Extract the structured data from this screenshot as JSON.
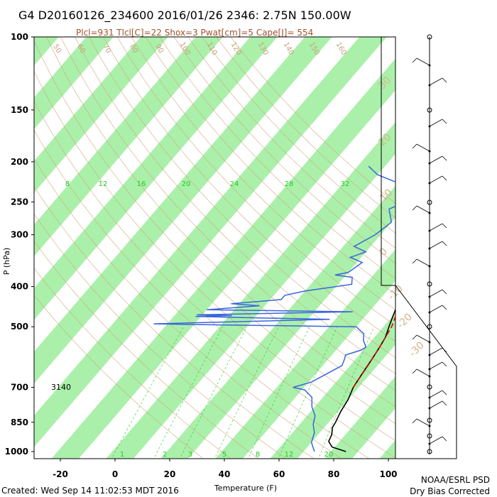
{
  "header": {
    "title": "G4 D20160126_234600 2016/01/26 2346:  2.75N 150.00W",
    "indices": "Plcl=931 Tlcl[C]=22 Shox=3 Pwat[cm]=5 Cape[J]= 554"
  },
  "footer": {
    "created": "Created: Wed Sep 14 11:02:53 MDT 2016",
    "org": "NOAA/ESRL PSD",
    "note": "Dry Bias Corrected"
  },
  "annotation": {
    "height_label": "3140"
  },
  "colors": {
    "temperature": "#000000",
    "dewpoint": "#3a66dd",
    "parcel": "#dd0000",
    "isotherm_band": "#aaf0aa",
    "dry_adiabat": "#d2a77f",
    "mixing_ratio": "#22cc22"
  },
  "chart_data": {
    "type": "line",
    "title": "",
    "xlabel": "Temperature (F)",
    "ylabel": "P (hPa)",
    "x_ticks": [
      "-20",
      "0",
      "20",
      "40",
      "60",
      "80",
      "100"
    ],
    "y_ticks": [
      "100",
      "150",
      "200",
      "250",
      "300",
      "400",
      "500",
      "700",
      "850",
      "1000"
    ],
    "xlim": [
      -30,
      107
    ],
    "ylim_log": [
      1040,
      100
    ],
    "y_scale": "log",
    "mixing_ratio_labels_top": [
      "8",
      "12",
      "16",
      "20",
      "24",
      "28",
      "32"
    ],
    "mixing_ratio_labels_bottom": [
      "1",
      "2",
      "3",
      "5",
      "8",
      "12",
      "20"
    ],
    "dry_adiabat_labels": [
      "50",
      "60",
      "70",
      "80",
      "90",
      "100",
      "110",
      "120",
      "130",
      "140",
      "150",
      "160"
    ],
    "skewed_isotherm_labels": [
      "30",
      "20",
      "10",
      "0",
      "-10",
      "-20",
      "-30"
    ],
    "series": [
      {
        "name": "Temperature",
        "points": [
          [
            85.5,
            1000
          ],
          [
            79,
            975
          ],
          [
            76,
            945
          ],
          [
            75,
            910
          ],
          [
            73,
            875
          ],
          [
            72.5,
            850
          ],
          [
            71,
            800
          ],
          [
            70,
            750
          ],
          [
            68,
            700
          ],
          [
            67,
            650
          ],
          [
            66,
            600
          ],
          [
            65,
            560
          ],
          [
            64,
            530
          ],
          [
            62,
            500
          ],
          [
            60,
            470
          ],
          [
            58,
            440
          ],
          [
            55.5,
            410
          ],
          [
            52,
            380
          ],
          [
            48,
            355
          ],
          [
            46,
            330
          ],
          [
            44,
            300
          ],
          [
            39,
            275
          ],
          [
            35,
            250
          ],
          [
            28,
            225
          ],
          [
            22,
            200
          ],
          [
            18,
            185
          ]
        ]
      },
      {
        "name": "Dewpoint",
        "points": [
          [
            74,
            1000
          ],
          [
            72,
            975
          ],
          [
            70,
            950
          ],
          [
            68,
            900
          ],
          [
            65,
            860
          ],
          [
            63,
            820
          ],
          [
            59,
            780
          ],
          [
            56,
            740
          ],
          [
            51,
            710
          ],
          [
            46,
            700
          ],
          [
            51,
            680
          ],
          [
            54,
            650
          ],
          [
            57,
            620
          ],
          [
            56,
            600
          ],
          [
            55,
            585
          ],
          [
            59,
            570
          ],
          [
            60,
            560
          ],
          [
            57,
            540
          ],
          [
            55,
            520
          ],
          [
            50,
            500
          ],
          [
            0,
            495
          ],
          [
            -25,
            492
          ],
          [
            38,
            480
          ],
          [
            5,
            475
          ],
          [
            -12,
            472
          ],
          [
            1,
            470
          ],
          [
            -12,
            468
          ],
          [
            44,
            460
          ],
          [
            -10,
            455
          ],
          [
            8,
            445
          ],
          [
            -3,
            440
          ],
          [
            14,
            430
          ],
          [
            14,
            420
          ],
          [
            17,
            415
          ],
          [
            20,
            410
          ],
          [
            30,
            400
          ],
          [
            35,
            395
          ],
          [
            33,
            380
          ],
          [
            26,
            375
          ],
          [
            30,
            370
          ],
          [
            32,
            350
          ],
          [
            26,
            340
          ],
          [
            30,
            330
          ],
          [
            24,
            320
          ],
          [
            28,
            300
          ],
          [
            30,
            280
          ],
          [
            25,
            260
          ],
          [
            29,
            250
          ],
          [
            27,
            240
          ],
          [
            20,
            225
          ],
          [
            10,
            215
          ],
          [
            4,
            205
          ]
        ]
      },
      {
        "name": "Parcel",
        "points": [
          [
            68,
            700
          ],
          [
            66.5,
            620
          ],
          [
            65,
            560
          ],
          [
            63,
            500
          ],
          [
            61,
            470
          ],
          [
            58,
            420
          ],
          [
            54,
            380
          ],
          [
            50,
            350
          ],
          [
            45,
            320
          ],
          [
            40,
            290
          ],
          [
            34,
            260
          ],
          [
            27,
            235
          ],
          [
            20,
            210
          ],
          [
            15,
            190
          ]
        ]
      }
    ]
  }
}
